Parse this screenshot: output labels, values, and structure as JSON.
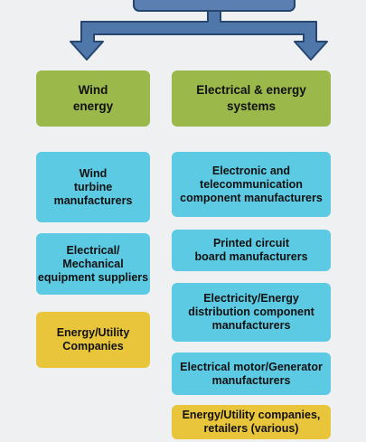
{
  "columns": [
    {
      "header": {
        "lines": [
          "Wind",
          "energy"
        ]
      },
      "items": [
        {
          "lines": [
            "Wind",
            "turbine",
            "manufacturers"
          ]
        },
        {
          "lines": [
            "Electrical/",
            "Mechanical",
            "equipment suppliers"
          ]
        },
        {
          "lines": [
            "Energy/Utility",
            "Companies"
          ]
        }
      ]
    },
    {
      "header": {
        "lines": [
          "Electrical & energy",
          "systems"
        ]
      },
      "items": [
        {
          "lines": [
            "Electronic and",
            "telecommunication",
            "component manufacturers"
          ]
        },
        {
          "lines": [
            "Printed circuit",
            "board manufacturers"
          ]
        },
        {
          "lines": [
            "Electricity/Energy",
            "distribution component",
            "manufacturers"
          ]
        },
        {
          "lines": [
            "Electrical motor/Generator",
            "manufacturers"
          ]
        },
        {
          "lines": [
            "Energy/Utility companies,",
            "retailers (various)"
          ]
        }
      ]
    }
  ]
}
